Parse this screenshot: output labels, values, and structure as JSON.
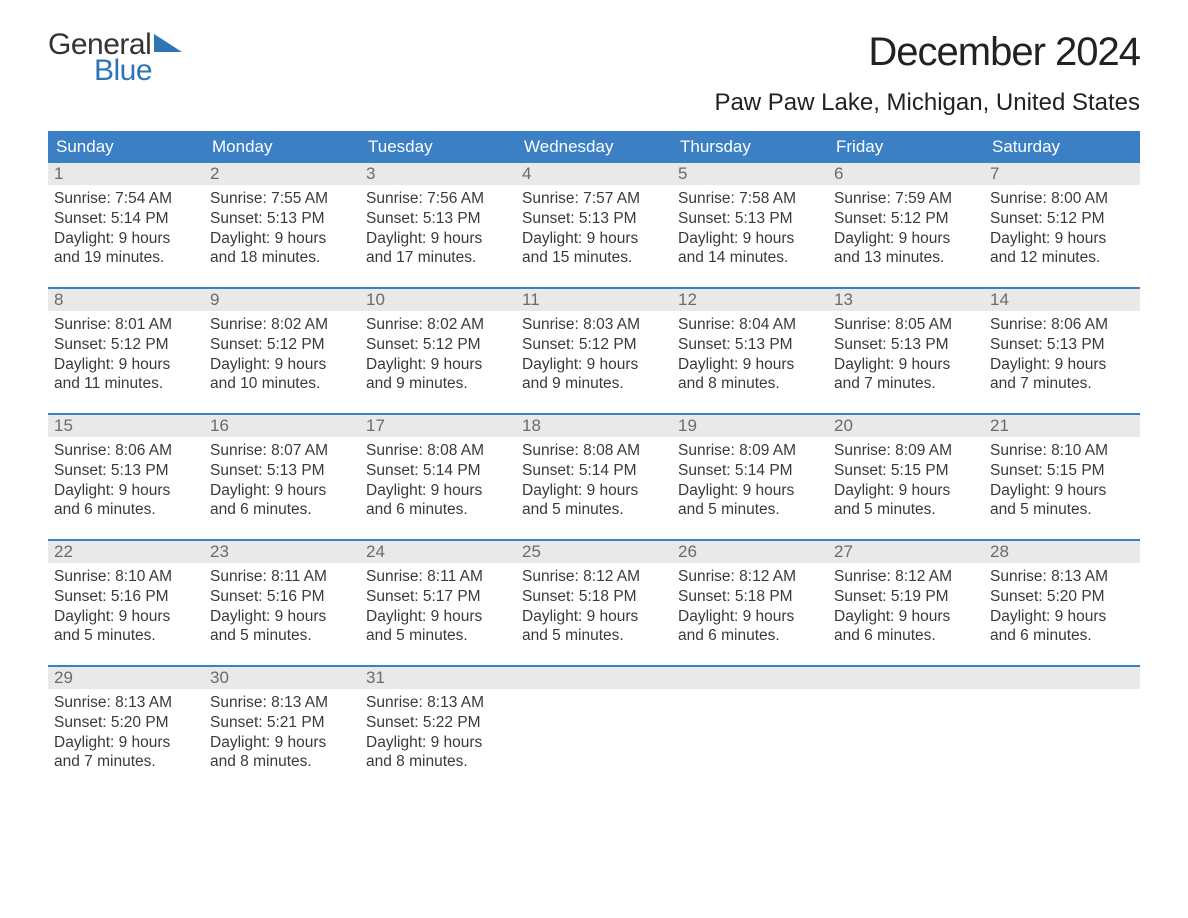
{
  "logo": {
    "general": "General",
    "blue": "Blue",
    "flag_color": "#2e75b6"
  },
  "title": "December 2024",
  "location": "Paw Paw Lake, Michigan, United States",
  "colors": {
    "header_bg": "#3b7fc4",
    "header_text": "#ffffff",
    "daynum_bg": "#e9e9e9",
    "daynum_text": "#6b6b6b",
    "body_text": "#3a3a3a",
    "week_border": "#3b7fc4",
    "background": "#ffffff"
  },
  "typography": {
    "title_fontsize": 40,
    "location_fontsize": 24,
    "dow_fontsize": 17,
    "daynum_fontsize": 17,
    "body_fontsize": 15.5
  },
  "dow": [
    "Sunday",
    "Monday",
    "Tuesday",
    "Wednesday",
    "Thursday",
    "Friday",
    "Saturday"
  ],
  "weeks": [
    [
      {
        "n": "1",
        "sunrise": "Sunrise: 7:54 AM",
        "sunset": "Sunset: 5:14 PM",
        "d1": "Daylight: 9 hours",
        "d2": "and 19 minutes."
      },
      {
        "n": "2",
        "sunrise": "Sunrise: 7:55 AM",
        "sunset": "Sunset: 5:13 PM",
        "d1": "Daylight: 9 hours",
        "d2": "and 18 minutes."
      },
      {
        "n": "3",
        "sunrise": "Sunrise: 7:56 AM",
        "sunset": "Sunset: 5:13 PM",
        "d1": "Daylight: 9 hours",
        "d2": "and 17 minutes."
      },
      {
        "n": "4",
        "sunrise": "Sunrise: 7:57 AM",
        "sunset": "Sunset: 5:13 PM",
        "d1": "Daylight: 9 hours",
        "d2": "and 15 minutes."
      },
      {
        "n": "5",
        "sunrise": "Sunrise: 7:58 AM",
        "sunset": "Sunset: 5:13 PM",
        "d1": "Daylight: 9 hours",
        "d2": "and 14 minutes."
      },
      {
        "n": "6",
        "sunrise": "Sunrise: 7:59 AM",
        "sunset": "Sunset: 5:12 PM",
        "d1": "Daylight: 9 hours",
        "d2": "and 13 minutes."
      },
      {
        "n": "7",
        "sunrise": "Sunrise: 8:00 AM",
        "sunset": "Sunset: 5:12 PM",
        "d1": "Daylight: 9 hours",
        "d2": "and 12 minutes."
      }
    ],
    [
      {
        "n": "8",
        "sunrise": "Sunrise: 8:01 AM",
        "sunset": "Sunset: 5:12 PM",
        "d1": "Daylight: 9 hours",
        "d2": "and 11 minutes."
      },
      {
        "n": "9",
        "sunrise": "Sunrise: 8:02 AM",
        "sunset": "Sunset: 5:12 PM",
        "d1": "Daylight: 9 hours",
        "d2": "and 10 minutes."
      },
      {
        "n": "10",
        "sunrise": "Sunrise: 8:02 AM",
        "sunset": "Sunset: 5:12 PM",
        "d1": "Daylight: 9 hours",
        "d2": "and 9 minutes."
      },
      {
        "n": "11",
        "sunrise": "Sunrise: 8:03 AM",
        "sunset": "Sunset: 5:12 PM",
        "d1": "Daylight: 9 hours",
        "d2": "and 9 minutes."
      },
      {
        "n": "12",
        "sunrise": "Sunrise: 8:04 AM",
        "sunset": "Sunset: 5:13 PM",
        "d1": "Daylight: 9 hours",
        "d2": "and 8 minutes."
      },
      {
        "n": "13",
        "sunrise": "Sunrise: 8:05 AM",
        "sunset": "Sunset: 5:13 PM",
        "d1": "Daylight: 9 hours",
        "d2": "and 7 minutes."
      },
      {
        "n": "14",
        "sunrise": "Sunrise: 8:06 AM",
        "sunset": "Sunset: 5:13 PM",
        "d1": "Daylight: 9 hours",
        "d2": "and 7 minutes."
      }
    ],
    [
      {
        "n": "15",
        "sunrise": "Sunrise: 8:06 AM",
        "sunset": "Sunset: 5:13 PM",
        "d1": "Daylight: 9 hours",
        "d2": "and 6 minutes."
      },
      {
        "n": "16",
        "sunrise": "Sunrise: 8:07 AM",
        "sunset": "Sunset: 5:13 PM",
        "d1": "Daylight: 9 hours",
        "d2": "and 6 minutes."
      },
      {
        "n": "17",
        "sunrise": "Sunrise: 8:08 AM",
        "sunset": "Sunset: 5:14 PM",
        "d1": "Daylight: 9 hours",
        "d2": "and 6 minutes."
      },
      {
        "n": "18",
        "sunrise": "Sunrise: 8:08 AM",
        "sunset": "Sunset: 5:14 PM",
        "d1": "Daylight: 9 hours",
        "d2": "and 5 minutes."
      },
      {
        "n": "19",
        "sunrise": "Sunrise: 8:09 AM",
        "sunset": "Sunset: 5:14 PM",
        "d1": "Daylight: 9 hours",
        "d2": "and 5 minutes."
      },
      {
        "n": "20",
        "sunrise": "Sunrise: 8:09 AM",
        "sunset": "Sunset: 5:15 PM",
        "d1": "Daylight: 9 hours",
        "d2": "and 5 minutes."
      },
      {
        "n": "21",
        "sunrise": "Sunrise: 8:10 AM",
        "sunset": "Sunset: 5:15 PM",
        "d1": "Daylight: 9 hours",
        "d2": "and 5 minutes."
      }
    ],
    [
      {
        "n": "22",
        "sunrise": "Sunrise: 8:10 AM",
        "sunset": "Sunset: 5:16 PM",
        "d1": "Daylight: 9 hours",
        "d2": "and 5 minutes."
      },
      {
        "n": "23",
        "sunrise": "Sunrise: 8:11 AM",
        "sunset": "Sunset: 5:16 PM",
        "d1": "Daylight: 9 hours",
        "d2": "and 5 minutes."
      },
      {
        "n": "24",
        "sunrise": "Sunrise: 8:11 AM",
        "sunset": "Sunset: 5:17 PM",
        "d1": "Daylight: 9 hours",
        "d2": "and 5 minutes."
      },
      {
        "n": "25",
        "sunrise": "Sunrise: 8:12 AM",
        "sunset": "Sunset: 5:18 PM",
        "d1": "Daylight: 9 hours",
        "d2": "and 5 minutes."
      },
      {
        "n": "26",
        "sunrise": "Sunrise: 8:12 AM",
        "sunset": "Sunset: 5:18 PM",
        "d1": "Daylight: 9 hours",
        "d2": "and 6 minutes."
      },
      {
        "n": "27",
        "sunrise": "Sunrise: 8:12 AM",
        "sunset": "Sunset: 5:19 PM",
        "d1": "Daylight: 9 hours",
        "d2": "and 6 minutes."
      },
      {
        "n": "28",
        "sunrise": "Sunrise: 8:13 AM",
        "sunset": "Sunset: 5:20 PM",
        "d1": "Daylight: 9 hours",
        "d2": "and 6 minutes."
      }
    ],
    [
      {
        "n": "29",
        "sunrise": "Sunrise: 8:13 AM",
        "sunset": "Sunset: 5:20 PM",
        "d1": "Daylight: 9 hours",
        "d2": "and 7 minutes."
      },
      {
        "n": "30",
        "sunrise": "Sunrise: 8:13 AM",
        "sunset": "Sunset: 5:21 PM",
        "d1": "Daylight: 9 hours",
        "d2": "and 8 minutes."
      },
      {
        "n": "31",
        "sunrise": "Sunrise: 8:13 AM",
        "sunset": "Sunset: 5:22 PM",
        "d1": "Daylight: 9 hours",
        "d2": "and 8 minutes."
      },
      {
        "empty": true
      },
      {
        "empty": true
      },
      {
        "empty": true
      },
      {
        "empty": true
      }
    ]
  ]
}
